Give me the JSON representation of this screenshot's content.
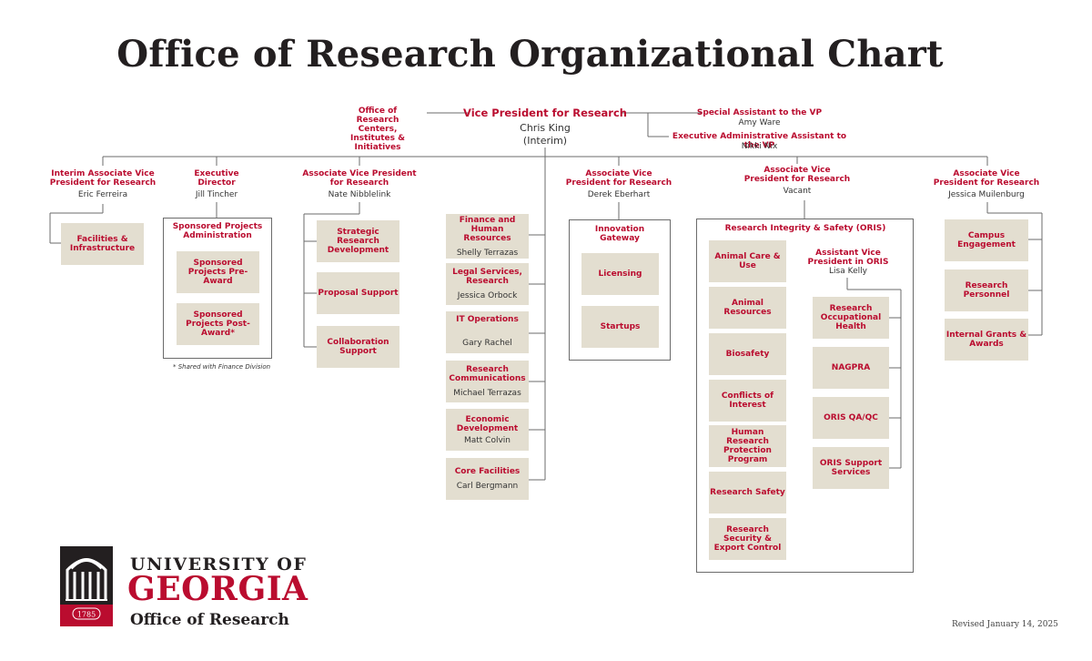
{
  "title": "Office of Research Organizational Chart",
  "top": {
    "vp_title": "Vice President for Research",
    "vp_name_line1": "Chris King",
    "vp_name_line2": "(Interim)",
    "centers": "Office of Research Centers, Institutes & Initiatives",
    "special_assistant_title": "Special Assistant to the VP",
    "special_assistant_name": "Amy Ware",
    "exec_admin_title": "Executive Administrative Assistant to the VP",
    "exec_admin_name": "Nikki Nix"
  },
  "col1": {
    "title": "Interim Associate Vice President for Research",
    "name": "Eric Ferreira",
    "units": [
      "Facilities & Infrastructure"
    ]
  },
  "col2": {
    "title": "Executive Director",
    "name": "Jill Tincher",
    "group": "Sponsored Projects Administration",
    "units": [
      "Sponsored Projects Pre-Award",
      "Sponsored Projects Post-Award*"
    ],
    "footnote": "* Shared with Finance Division"
  },
  "col3": {
    "title": "Associate Vice President for Research",
    "name": "Nate Nibblelink",
    "units": [
      "Strategic Research Development",
      "Proposal Support",
      "Collaboration Support"
    ]
  },
  "col4": {
    "units": [
      {
        "title": "Finance and Human Resources",
        "name": "Shelly Terrazas"
      },
      {
        "title": "Legal Services, Research",
        "name": "Jessica Orbock"
      },
      {
        "title": "IT Operations",
        "name": "Gary Rachel"
      },
      {
        "title": "Research Communications",
        "name": "Michael Terrazas"
      },
      {
        "title": "Economic Development",
        "name": "Matt Colvin"
      },
      {
        "title": "Core Facilities",
        "name": "Carl Bergmann"
      }
    ]
  },
  "col5": {
    "title": "Associate Vice President for Research",
    "name": "Derek Eberhart",
    "group": "Innovation Gateway",
    "units": [
      "Licensing",
      "Startups"
    ]
  },
  "col6": {
    "title": "Associate Vice President for Research",
    "name": "Vacant",
    "group": "Research Integrity & Safety (ORIS)",
    "units_left": [
      "Animal Care & Use",
      "Animal Resources",
      "Biosafety",
      "Conflicts of Interest",
      "Human Research Protection Program",
      "Research Safety",
      "Research Security & Export Control"
    ],
    "avp_title": "Assistant Vice President in ORIS",
    "avp_name": "Lisa Kelly",
    "units_right": [
      "Research Occupational Health",
      "NAGPRA",
      "ORIS QA/QC",
      "ORIS Support Services"
    ]
  },
  "col7": {
    "title": "Associate Vice President for Research",
    "name": "Jessica Muilenburg",
    "units": [
      "Campus Engagement",
      "Research Personnel",
      "Internal Grants & Awards"
    ]
  },
  "logo": {
    "line1": "UNIVERSITY OF",
    "line2": "GEORGIA",
    "line3": "Office of Research",
    "year": "1785"
  },
  "revised": "Revised January 14, 2025",
  "colors": {
    "accent": "#ba0c2f",
    "box": "#e3ded0",
    "line": "#6b6b6b"
  }
}
